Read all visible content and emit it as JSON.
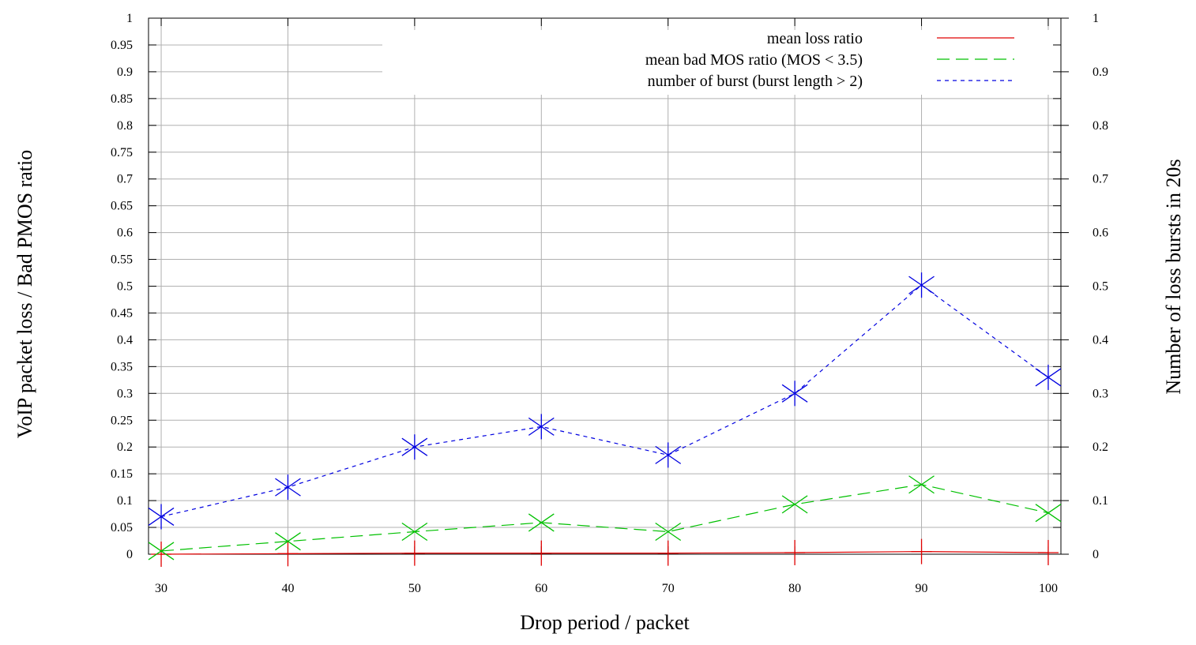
{
  "chart_data": {
    "type": "line",
    "title": "",
    "xlabel": "Drop period / packet",
    "ylabel": "VoIP packet loss / Bad PMOS ratio",
    "y2label": "Number of loss bursts in 20s",
    "x": [
      30,
      40,
      50,
      60,
      70,
      80,
      90,
      100
    ],
    "xlim": [
      29,
      101
    ],
    "ylim": [
      0,
      1
    ],
    "y2lim": [
      0,
      1
    ],
    "x_ticks": [
      "30",
      "40",
      "50",
      "60",
      "70",
      "80",
      "90",
      "100"
    ],
    "y_ticks": [
      "0",
      "0.05",
      "0.1",
      "0.15",
      "0.2",
      "0.25",
      "0.3",
      "0.35",
      "0.4",
      "0.45",
      "0.5",
      "0.55",
      "0.6",
      "0.65",
      "0.7",
      "0.75",
      "0.8",
      "0.85",
      "0.9",
      "0.95",
      "1"
    ],
    "y2_ticks": [
      "0",
      "0.1",
      "0.2",
      "0.3",
      "0.4",
      "0.5",
      "0.6",
      "0.7",
      "0.8",
      "0.9",
      "1"
    ],
    "grid": true,
    "legend_position": "top-right",
    "series": [
      {
        "name": "mean loss ratio",
        "color": "#e00000",
        "dash": "solid",
        "marker": "plus",
        "values": [
          0.0,
          0.001,
          0.002,
          0.002,
          0.002,
          0.003,
          0.005,
          0.003
        ]
      },
      {
        "name": "mean bad MOS ratio (MOS < 3.5)",
        "color": "#00c000",
        "dash": "long",
        "marker": "cross",
        "values": [
          0.006,
          0.024,
          0.042,
          0.059,
          0.042,
          0.093,
          0.13,
          0.077
        ]
      },
      {
        "name": "number of burst (burst length > 2)",
        "color": "#0000e0",
        "dash": "short",
        "marker": "star",
        "values": [
          0.07,
          0.125,
          0.2,
          0.238,
          0.185,
          0.3,
          0.502,
          0.33
        ]
      }
    ]
  }
}
